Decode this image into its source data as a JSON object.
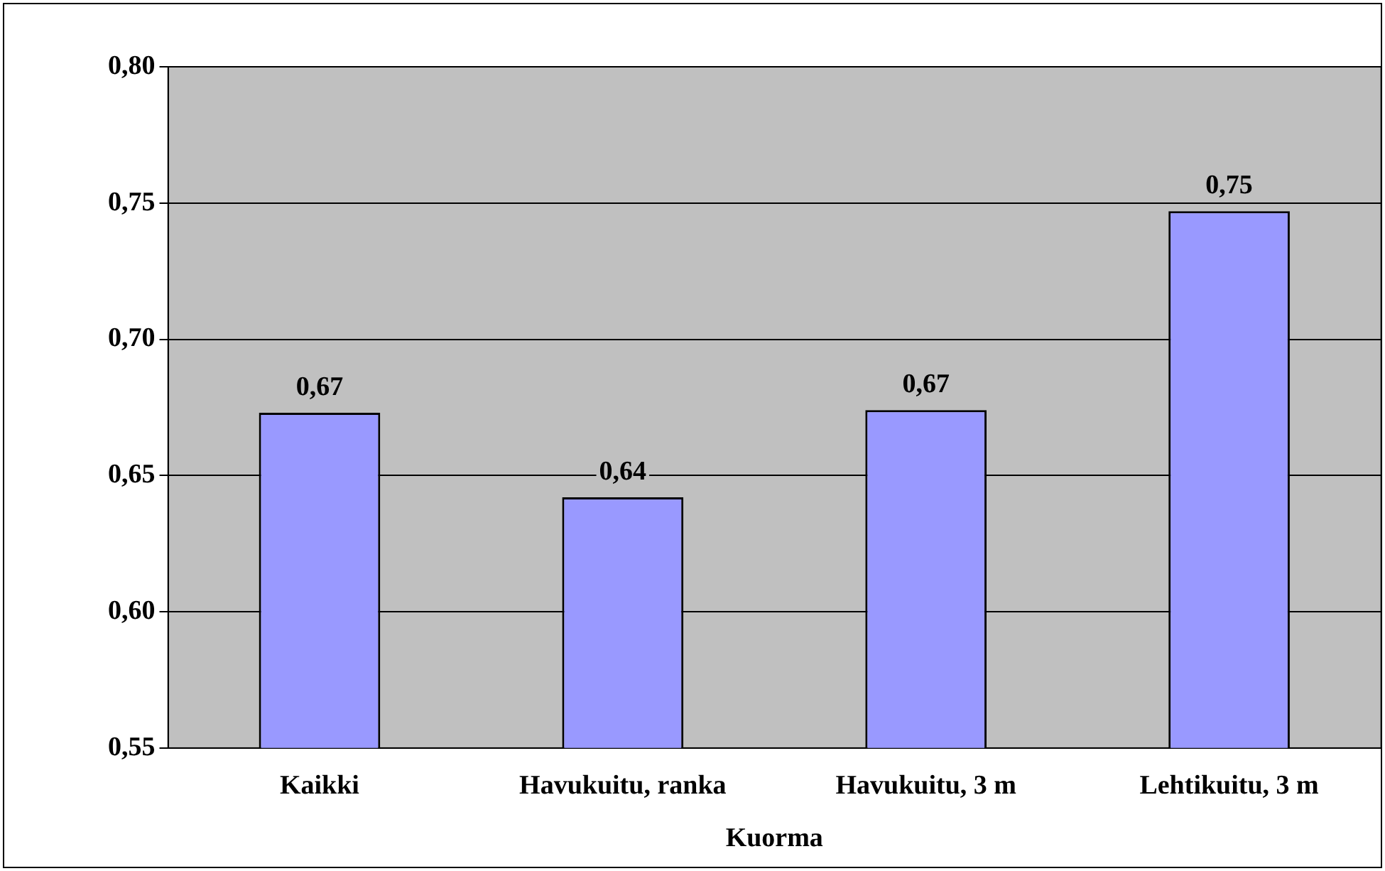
{
  "chart_data": {
    "type": "bar",
    "xlabel": "Kuorma",
    "categories": [
      "Kaikki",
      "Havukuitu, ranka",
      "Havukuitu, 3 m",
      "Lehtikuitu, 3 m"
    ],
    "values": [
      0.673,
      0.642,
      0.674,
      0.747
    ],
    "value_labels": [
      "0,67",
      "0,64",
      "0,67",
      "0,75"
    ],
    "color": "#9999ff",
    "ylim": [
      0.55,
      0.8
    ],
    "yticks": [
      {
        "value": 0.55,
        "label": "0,55"
      },
      {
        "value": 0.6,
        "label": "0,60"
      },
      {
        "value": 0.65,
        "label": "0,65"
      },
      {
        "value": 0.7,
        "label": "0,70"
      },
      {
        "value": 0.75,
        "label": "0,75"
      },
      {
        "value": 0.8,
        "label": "0,80"
      }
    ],
    "grid": "y",
    "legend": false
  }
}
